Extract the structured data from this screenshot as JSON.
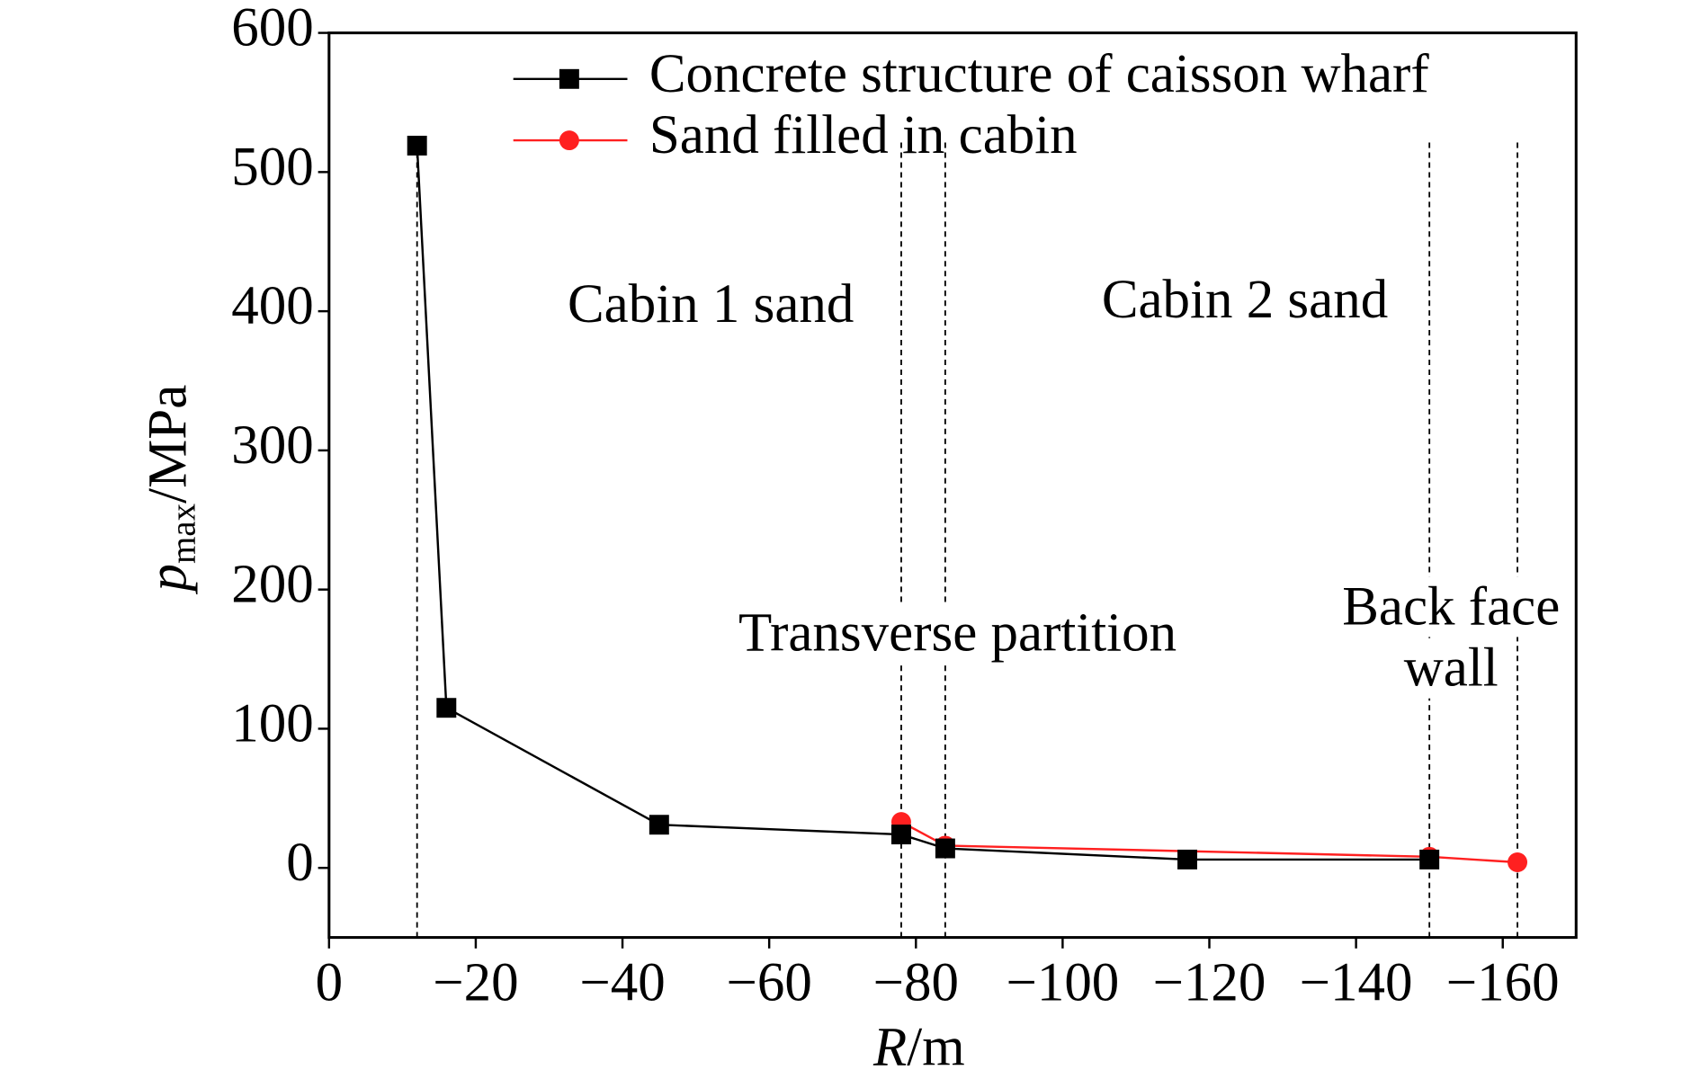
{
  "chart_data": {
    "type": "line",
    "xlabel": {
      "symbol": "R",
      "unit": "/m"
    },
    "ylabel": {
      "symbol": "p",
      "subscript": "max",
      "unit": "/MPa"
    },
    "xlim": [
      0,
      -170
    ],
    "ylim": [
      -50,
      600
    ],
    "xticks": [
      0,
      {
        "value": -20,
        "label": "−20"
      },
      {
        "value": -40,
        "label": "−40"
      },
      {
        "value": -60,
        "label": "−60"
      },
      {
        "value": -80,
        "label": "−80"
      },
      {
        "value": -100,
        "label": "−100"
      },
      {
        "value": -120,
        "label": "−120"
      },
      {
        "value": -140,
        "label": "−140"
      },
      {
        "value": -160,
        "label": "−160"
      }
    ],
    "yticks": [
      0,
      100,
      200,
      300,
      400,
      500,
      600
    ],
    "series": [
      {
        "name": "Concrete structure of caisson wharf",
        "color": "#000000",
        "marker": "square",
        "x": [
          -12,
          -16,
          -45,
          -78,
          -84,
          -117,
          -150
        ],
        "values": [
          519,
          115,
          31,
          24,
          14,
          6,
          6
        ]
      },
      {
        "name": "Sand filled in cabin",
        "color": "#ff2020",
        "marker": "circle",
        "x": [
          -78,
          -84,
          -150,
          -162
        ],
        "values": [
          33,
          16,
          8,
          4
        ]
      }
    ],
    "vlines": [
      -12,
      -78,
      -84,
      -150,
      -162
    ],
    "annotations": [
      "Cabin 1 sand",
      "Cabin 2 sand",
      "Transverse partition",
      "Back face",
      "wall"
    ],
    "legend": "upper right"
  }
}
